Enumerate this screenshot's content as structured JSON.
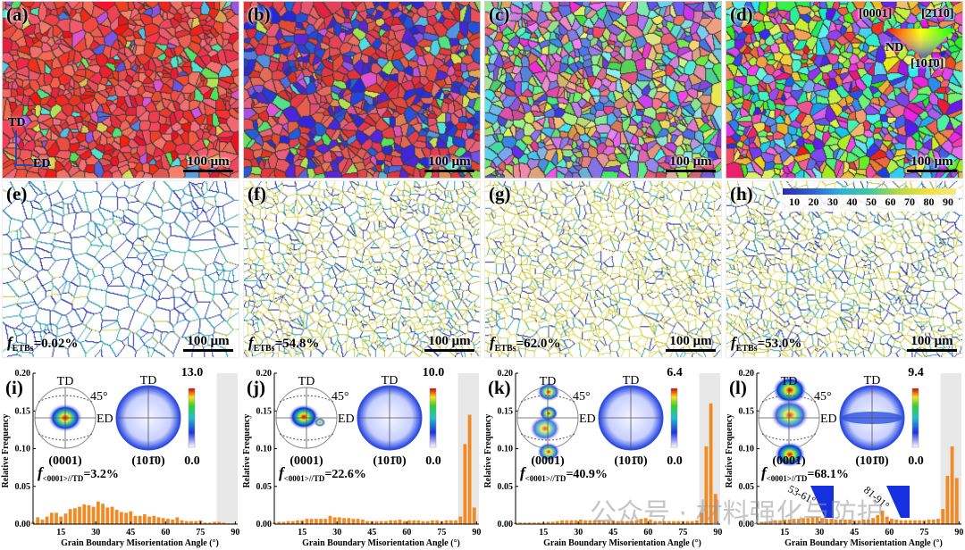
{
  "panels_top": [
    {
      "label": "(a)",
      "scale": "100 μm",
      "scheme": "red",
      "axes": {
        "td": "TD",
        "ed": "ED"
      }
    },
    {
      "label": "(b)",
      "scale": "100 μm",
      "scheme": "redblue"
    },
    {
      "label": "(c)",
      "scale": "100 μm",
      "scheme": "mixed"
    },
    {
      "label": "(d)",
      "scale": "100 μm",
      "scheme": "ipf",
      "ipf_key": {
        "c1": "[0001]",
        "c2": "[2̄110]",
        "c3": "[101̄0]",
        "nd": "ND"
      }
    }
  ],
  "panels_mid": [
    {
      "label": "(e)",
      "scale": "100 μm",
      "f_label": "f",
      "f_sub": "ETBs",
      "f_value": "=0.02%",
      "twin_fraction": 0.0002
    },
    {
      "label": "(f)",
      "scale": "100 μm",
      "f_label": "f",
      "f_sub": "ETBs",
      "f_value": "=54.8%",
      "twin_fraction": 0.548
    },
    {
      "label": "(g)",
      "scale": "100 μm",
      "f_label": "f",
      "f_sub": "ETBs",
      "f_value": "=62.0%",
      "twin_fraction": 0.62
    },
    {
      "label": "(h)",
      "scale": "100 μm",
      "f_label": "f",
      "f_sub": "ETBs",
      "f_value": "=53.0%",
      "twin_fraction": 0.53,
      "colorbar_ticks": [
        "10",
        "20",
        "30",
        "40",
        "50",
        "60",
        "70",
        "80",
        "90"
      ]
    }
  ],
  "watermark": "公众号 · 材料强化与防护",
  "chart_data": [
    {
      "type": "bar",
      "label": "(i)",
      "xlabel": "Grain Boundary Misorientation Angle (°)",
      "ylabel": "Relative Frequency",
      "xlim": [
        3,
        91
      ],
      "ylim": [
        0,
        0.2
      ],
      "xticks": [
        "15",
        "30",
        "45",
        "60",
        "75",
        "90"
      ],
      "yticks": [
        "0.00",
        "0.05",
        "0.10",
        "0.15",
        "0.20"
      ],
      "shaded_range": [
        82,
        91
      ],
      "pf": {
        "td": "TD",
        "ed": "ED",
        "angle": "45°",
        "pf1": "(0001)",
        "pf2": "(101̄0)",
        "cmax": "13.0",
        "cmin": "0.0",
        "ftext": "f",
        "fsub": "<0001>//TD",
        "fval": "=3.2%"
      },
      "x": [
        3,
        5,
        7,
        9,
        11,
        13,
        15,
        17,
        19,
        21,
        23,
        25,
        27,
        29,
        31,
        33,
        35,
        37,
        39,
        41,
        43,
        45,
        47,
        49,
        51,
        53,
        55,
        57,
        59,
        61,
        63,
        65,
        67,
        69,
        71,
        73,
        75,
        77,
        79,
        81,
        83,
        85,
        87,
        89
      ],
      "values": [
        0.003,
        0.009,
        0.006,
        0.01,
        0.015,
        0.015,
        0.01,
        0.014,
        0.02,
        0.021,
        0.023,
        0.026,
        0.025,
        0.023,
        0.03,
        0.027,
        0.022,
        0.023,
        0.019,
        0.016,
        0.015,
        0.017,
        0.011,
        0.011,
        0.013,
        0.01,
        0.011,
        0.009,
        0.008,
        0.007,
        0.006,
        0.009,
        0.005,
        0.004,
        0.004,
        0.004,
        0.005,
        0.002,
        0.002,
        0.003,
        0.003,
        0.002,
        0.001,
        0.001
      ]
    },
    {
      "type": "bar",
      "label": "(j)",
      "xlabel": "Grain Boundary Misorientation Angle (°)",
      "ylabel": "Relative Frequency",
      "xlim": [
        3,
        91
      ],
      "ylim": [
        0,
        0.2
      ],
      "xticks": [
        "15",
        "30",
        "45",
        "60",
        "75",
        "90"
      ],
      "yticks": [
        "0.00",
        "0.05",
        "0.10",
        "0.15",
        "0.20"
      ],
      "shaded_range": [
        82,
        91
      ],
      "pf": {
        "td": "TD",
        "ed": "ED",
        "angle": "45°",
        "pf1": "(0001)",
        "pf2": "(101̄0)",
        "cmax": "10.0",
        "cmin": "0.0",
        "ftext": "f",
        "fsub": "<0001>//TD",
        "fval": "=22.6%"
      },
      "x": [
        3,
        5,
        7,
        9,
        11,
        13,
        15,
        17,
        19,
        21,
        23,
        25,
        27,
        29,
        31,
        33,
        35,
        37,
        39,
        41,
        43,
        45,
        47,
        49,
        51,
        53,
        55,
        57,
        59,
        61,
        63,
        65,
        67,
        69,
        71,
        73,
        75,
        77,
        79,
        81,
        83,
        85,
        87,
        89
      ],
      "values": [
        0.002,
        0.003,
        0.003,
        0.004,
        0.004,
        0.005,
        0.005,
        0.007,
        0.007,
        0.007,
        0.007,
        0.007,
        0.011,
        0.009,
        0.009,
        0.008,
        0.008,
        0.007,
        0.007,
        0.006,
        0.004,
        0.004,
        0.004,
        0.004,
        0.004,
        0.005,
        0.005,
        0.006,
        0.004,
        0.005,
        0.005,
        0.005,
        0.004,
        0.004,
        0.005,
        0.005,
        0.004,
        0.005,
        0.005,
        0.005,
        0.01,
        0.106,
        0.145,
        0.022
      ]
    },
    {
      "type": "bar",
      "label": "(k)",
      "xlabel": "Grain Boundary Misorientation Angle (°)",
      "ylabel": "Relative Frequency",
      "xlim": [
        3,
        91
      ],
      "ylim": [
        0,
        0.2
      ],
      "xticks": [
        "15",
        "30",
        "45",
        "60",
        "75",
        "90"
      ],
      "yticks": [
        "0.00",
        "0.05",
        "0.10",
        "0.15",
        "0.20"
      ],
      "shaded_range": [
        82,
        91
      ],
      "pf": {
        "td": "TD",
        "ed": "ED",
        "angle": "45°",
        "pf1": "(0001)",
        "pf2": "(101̄0)",
        "cmax": "6.4",
        "cmin": "0.0",
        "ftext": "f",
        "fsub": "<0001>//TD",
        "fval": "=40.9%"
      },
      "x": [
        3,
        5,
        7,
        9,
        11,
        13,
        15,
        17,
        19,
        21,
        23,
        25,
        27,
        29,
        31,
        33,
        35,
        37,
        39,
        41,
        43,
        45,
        47,
        49,
        51,
        53,
        55,
        57,
        59,
        61,
        63,
        65,
        67,
        69,
        71,
        73,
        75,
        77,
        79,
        81,
        83,
        85,
        87,
        89
      ],
      "values": [
        0.002,
        0.002,
        0.002,
        0.002,
        0.002,
        0.002,
        0.002,
        0.003,
        0.003,
        0.004,
        0.005,
        0.005,
        0.005,
        0.005,
        0.006,
        0.005,
        0.005,
        0.005,
        0.005,
        0.004,
        0.004,
        0.005,
        0.004,
        0.004,
        0.004,
        0.004,
        0.005,
        0.007,
        0.008,
        0.006,
        0.004,
        0.004,
        0.004,
        0.004,
        0.004,
        0.004,
        0.004,
        0.004,
        0.004,
        0.005,
        0.015,
        0.103,
        0.16,
        0.04
      ]
    },
    {
      "type": "bar",
      "label": "(l)",
      "xlabel": "Grain Boundary Misorientation Angle (°)",
      "ylabel": "Relative Frequency",
      "xlim": [
        3,
        91
      ],
      "ylim": [
        0,
        0.2
      ],
      "xticks": [
        "15",
        "30",
        "45",
        "60",
        "75",
        "90"
      ],
      "yticks": [
        "0.00",
        "0.05",
        "0.10",
        "0.15",
        "0.20"
      ],
      "shaded_range": [
        82,
        91
      ],
      "pf": {
        "td": "TD",
        "ed": "ED",
        "angle": "45°",
        "pf1": "(0001)",
        "pf2": "(101̄0)",
        "cmax": "9.4",
        "cmin": "0.0",
        "ftext": "f",
        "fsub": "<0001>//TD",
        "fval": "=68.1%"
      },
      "inset": {
        "left": "53-61°",
        "right": "81-91°"
      },
      "x": [
        3,
        5,
        7,
        9,
        11,
        13,
        15,
        17,
        19,
        21,
        23,
        25,
        27,
        29,
        31,
        33,
        35,
        37,
        39,
        41,
        43,
        45,
        47,
        49,
        51,
        53,
        55,
        57,
        59,
        61,
        63,
        65,
        67,
        69,
        71,
        73,
        75,
        77,
        79,
        81,
        83,
        85,
        87,
        89
      ],
      "values": [
        0.002,
        0.003,
        0.003,
        0.004,
        0.005,
        0.005,
        0.006,
        0.006,
        0.007,
        0.007,
        0.008,
        0.008,
        0.009,
        0.009,
        0.008,
        0.007,
        0.007,
        0.006,
        0.006,
        0.006,
        0.006,
        0.005,
        0.005,
        0.006,
        0.006,
        0.008,
        0.012,
        0.018,
        0.01,
        0.007,
        0.006,
        0.005,
        0.005,
        0.005,
        0.005,
        0.005,
        0.005,
        0.006,
        0.006,
        0.007,
        0.02,
        0.064,
        0.103,
        0.061
      ]
    }
  ]
}
